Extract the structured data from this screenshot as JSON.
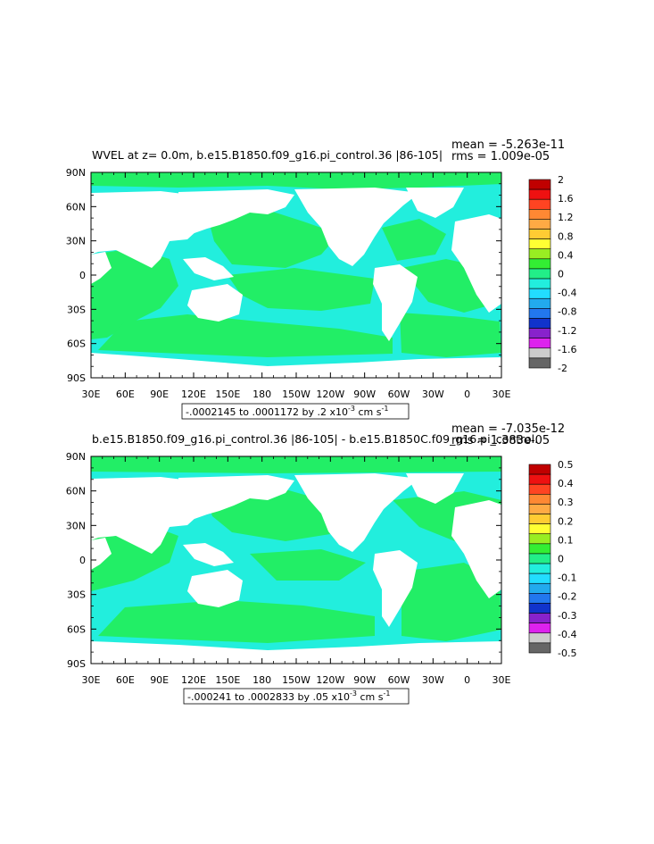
{
  "colors": {
    "green": "#22ee66",
    "cyan": "#22eedd",
    "land": "#ffffff"
  },
  "panels": [
    {
      "title": "WVEL at z=    0.0m, b.e15.B1850.f09_g16.pi_control.36 |86-105|",
      "mean": "mean = -5.263e-11",
      "rms": "rms = 1.009e-05",
      "range_label": "-.0002145 to .0001172 by .2 x10",
      "range_exp": "-3",
      "range_units": " cm s",
      "range_units_exp": "-1",
      "colorbar_labels": [
        "2",
        "1.6",
        "1.2",
        "0.8",
        "0.4",
        "0",
        "-0.4",
        "-0.8",
        "-1.2",
        "-1.6",
        "-2"
      ]
    },
    {
      "title": "b.e15.B1850.f09_g16.pi_control.36 |86-105| - b.e15.B1850C.f09_g16.pi_control.",
      "mean": "mean = -7.035e-12",
      "rms": "rms = 1.383e-05",
      "range_label": "-.000241 to .0002833 by .05 x10",
      "range_exp": "-3",
      "range_units": " cm s",
      "range_units_exp": "-1",
      "colorbar_labels": [
        "0.5",
        "0.4",
        "0.3",
        "0.2",
        "0.1",
        "0",
        "-0.1",
        "-0.2",
        "-0.3",
        "-0.4",
        "-0.5"
      ]
    }
  ],
  "lat_labels": [
    "90N",
    "60N",
    "30N",
    "0",
    "30S",
    "60S",
    "90S"
  ],
  "lon_labels": [
    "30E",
    "60E",
    "90E",
    "120E",
    "150E",
    "180",
    "150W",
    "120W",
    "90W",
    "60W",
    "30W",
    "0",
    "30E"
  ],
  "colorbar_colors": [
    "#c00000",
    "#ee1111",
    "#ff4422",
    "#ff8833",
    "#ffaa44",
    "#ffcc33",
    "#ffff33",
    "#99ee22",
    "#33ee33",
    "#22ee88",
    "#22eedd",
    "#22ddff",
    "#22aaee",
    "#2277ee",
    "#1133cc",
    "#8822cc",
    "#dd22ee",
    "#cccccc",
    "#666666"
  ]
}
